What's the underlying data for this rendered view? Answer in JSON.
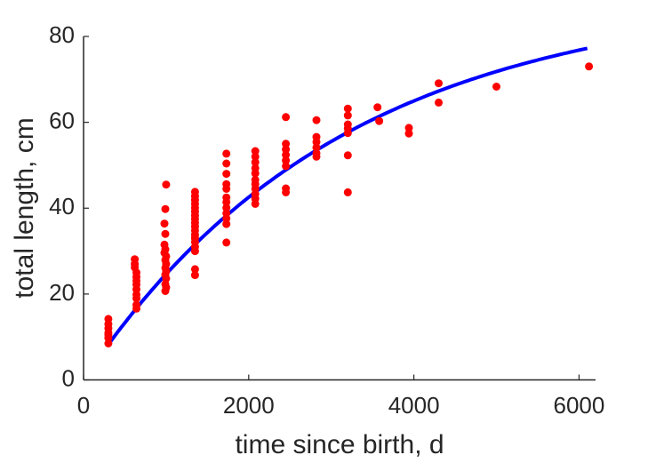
{
  "chart_data": {
    "type": "scatter",
    "xlabel": "time since birth, d",
    "ylabel": "total length, cm",
    "xlim": [
      0,
      6200
    ],
    "ylim": [
      0,
      80
    ],
    "x_ticks": [
      "0",
      "2000",
      "4000",
      "6000"
    ],
    "y_ticks": [
      "0",
      "20",
      "40",
      "60",
      "80"
    ],
    "x_tick_values": [
      0,
      2000,
      4000,
      6000
    ],
    "y_tick_values": [
      0,
      20,
      40,
      60,
      80
    ],
    "grid": false,
    "colors": {
      "points": "#ff0000",
      "curve": "#0000ff",
      "axis": "#262626"
    },
    "series": [
      {
        "type": "scatter",
        "points": [
          [
            300,
            14.2
          ],
          [
            300,
            13
          ],
          [
            300,
            12
          ],
          [
            300,
            11
          ],
          [
            300,
            10.5
          ],
          [
            300,
            9.8
          ],
          [
            300,
            8.5
          ],
          [
            620,
            28.1
          ],
          [
            620,
            27
          ],
          [
            620,
            26.2
          ],
          [
            640,
            25
          ],
          [
            640,
            24
          ],
          [
            640,
            23.1
          ],
          [
            640,
            22.2
          ],
          [
            640,
            21.1
          ],
          [
            640,
            19.9
          ],
          [
            640,
            19
          ],
          [
            640,
            17.5
          ],
          [
            640,
            16.6
          ],
          [
            1000,
            45.5
          ],
          [
            990,
            39.8
          ],
          [
            980,
            36.4
          ],
          [
            990,
            34
          ],
          [
            980,
            31.5
          ],
          [
            990,
            30.4
          ],
          [
            980,
            29.6
          ],
          [
            1000,
            28.8
          ],
          [
            990,
            27.9
          ],
          [
            1000,
            27
          ],
          [
            990,
            26.1
          ],
          [
            1000,
            25.3
          ],
          [
            990,
            24.5
          ],
          [
            1000,
            23.6
          ],
          [
            990,
            22.3
          ],
          [
            1000,
            21.5
          ],
          [
            990,
            20.7
          ],
          [
            1350,
            43.8
          ],
          [
            1350,
            42.8
          ],
          [
            1350,
            41.9
          ],
          [
            1350,
            41
          ],
          [
            1350,
            40.1
          ],
          [
            1350,
            39.2
          ],
          [
            1350,
            38.3
          ],
          [
            1350,
            37.5
          ],
          [
            1350,
            36.6
          ],
          [
            1350,
            35.7
          ],
          [
            1350,
            34.8
          ],
          [
            1350,
            33.8
          ],
          [
            1350,
            33
          ],
          [
            1350,
            32.1
          ],
          [
            1350,
            31
          ],
          [
            1350,
            30
          ],
          [
            1350,
            25.8
          ],
          [
            1350,
            24.4
          ],
          [
            1730,
            52.7
          ],
          [
            1730,
            50.4
          ],
          [
            1730,
            48
          ],
          [
            1730,
            45.6
          ],
          [
            1730,
            44.5
          ],
          [
            1730,
            42.5
          ],
          [
            1730,
            41.4
          ],
          [
            1730,
            40.1
          ],
          [
            1730,
            38.8
          ],
          [
            1730,
            37.6
          ],
          [
            1730,
            36.3
          ],
          [
            1730,
            32
          ],
          [
            2080,
            53.3
          ],
          [
            2080,
            52
          ],
          [
            2080,
            50.7
          ],
          [
            2080,
            49.3
          ],
          [
            2080,
            48.1
          ],
          [
            2080,
            46.6
          ],
          [
            2080,
            45.6
          ],
          [
            2080,
            44.5
          ],
          [
            2080,
            43.3
          ],
          [
            2080,
            42.2
          ],
          [
            2080,
            41
          ],
          [
            2450,
            61.2
          ],
          [
            2450,
            55
          ],
          [
            2450,
            53.7
          ],
          [
            2450,
            52.4
          ],
          [
            2450,
            51.1
          ],
          [
            2450,
            49.8
          ],
          [
            2450,
            44.6
          ],
          [
            2450,
            43.7
          ],
          [
            2820,
            60.5
          ],
          [
            2820,
            56.6
          ],
          [
            2820,
            55.4
          ],
          [
            2820,
            54.1
          ],
          [
            2820,
            52.8
          ],
          [
            2820,
            52
          ],
          [
            3200,
            63.2
          ],
          [
            3200,
            61.6
          ],
          [
            3200,
            59.5
          ],
          [
            3200,
            58.6
          ],
          [
            3200,
            57.5
          ],
          [
            3200,
            52.3
          ],
          [
            3200,
            43.7
          ],
          [
            3560,
            63.5
          ],
          [
            3580,
            60.3
          ],
          [
            3940,
            58.7
          ],
          [
            3940,
            57.4
          ],
          [
            4300,
            69.1
          ],
          [
            4300,
            64.6
          ],
          [
            5000,
            68.3
          ],
          [
            6120,
            73
          ]
        ]
      },
      {
        "type": "line",
        "fit": {
          "Linf": 90,
          "k": 0.00032,
          "t0": 0
        }
      }
    ]
  }
}
